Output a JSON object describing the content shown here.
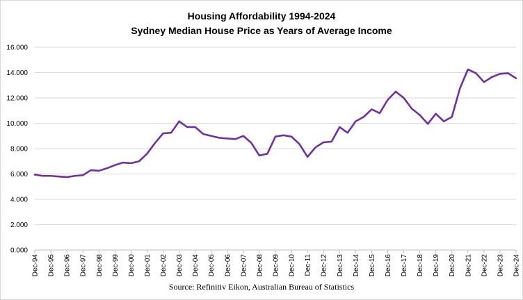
{
  "chart_data": {
    "type": "line",
    "title": "Housing Affordability 1994-2024",
    "subtitle": "Sydney Median House Price as Years of Average Income",
    "source": "Source: Refinitiv Eikon, Australian Bureau of Statistics",
    "xlabel": "",
    "ylabel": "",
    "ylim": [
      0,
      16
    ],
    "yticks": [
      "0.000",
      "2.000",
      "4.000",
      "6.000",
      "8.000",
      "10.000",
      "12.000",
      "14.000",
      "16.000"
    ],
    "xticks": [
      "Dec-94",
      "Dec-95",
      "Dec-96",
      "Dec-97",
      "Dec-98",
      "Dec-99",
      "Dec-00",
      "Dec-01",
      "Dec-02",
      "Dec-03",
      "Dec-04",
      "Dec-05",
      "Dec-06",
      "Dec-07",
      "Dec-08",
      "Dec-09",
      "Dec-10",
      "Dec-11",
      "Dec-12",
      "Dec-13",
      "Dec-14",
      "Dec-15",
      "Dec-16",
      "Dec-17",
      "Dec-18",
      "Dec-19",
      "Dec-20",
      "Dec-21",
      "Dec-22",
      "Dec-23",
      "Dec-24"
    ],
    "grid": "horizontal",
    "legend": "none",
    "series": [
      {
        "color": "#7030a0",
        "x": [
          "Dec-94",
          "Jun-95",
          "Dec-95",
          "Jun-96",
          "Dec-96",
          "Jun-97",
          "Dec-97",
          "Jun-98",
          "Dec-98",
          "Jun-99",
          "Dec-99",
          "Jun-00",
          "Dec-00",
          "Jun-01",
          "Dec-01",
          "Jun-02",
          "Dec-02",
          "Jun-03",
          "Dec-03",
          "Jun-04",
          "Dec-04",
          "Jun-05",
          "Dec-05",
          "Jun-06",
          "Dec-06",
          "Jun-07",
          "Dec-07",
          "Jun-08",
          "Dec-08",
          "Jun-09",
          "Dec-09",
          "Jun-10",
          "Dec-10",
          "Jun-11",
          "Dec-11",
          "Jun-12",
          "Dec-12",
          "Jun-13",
          "Dec-13",
          "Jun-14",
          "Dec-14",
          "Jun-15",
          "Dec-15",
          "Jun-16",
          "Dec-16",
          "Jun-17",
          "Dec-17",
          "Jun-18",
          "Dec-18",
          "Jun-19",
          "Dec-19",
          "Jun-20",
          "Dec-20",
          "Jun-21",
          "Dec-21",
          "Jun-22",
          "Dec-22",
          "Jun-23",
          "Dec-23",
          "Jun-24",
          "Dec-24"
        ],
        "values": [
          5.95,
          5.85,
          5.85,
          5.8,
          5.75,
          5.85,
          5.9,
          6.3,
          6.25,
          6.45,
          6.7,
          6.9,
          6.85,
          7.0,
          7.6,
          8.45,
          9.2,
          9.25,
          10.15,
          9.7,
          9.7,
          9.15,
          9.0,
          8.85,
          8.8,
          8.75,
          9.0,
          8.45,
          7.45,
          7.6,
          8.95,
          9.05,
          8.95,
          8.35,
          7.35,
          8.1,
          8.5,
          8.55,
          9.7,
          9.25,
          10.15,
          10.5,
          11.1,
          10.8,
          11.85,
          12.5,
          12.0,
          11.15,
          10.65,
          9.95,
          10.75,
          10.15,
          10.5,
          12.75,
          14.25,
          13.95,
          13.25,
          13.65,
          13.9,
          13.95,
          13.55
        ]
      }
    ]
  }
}
